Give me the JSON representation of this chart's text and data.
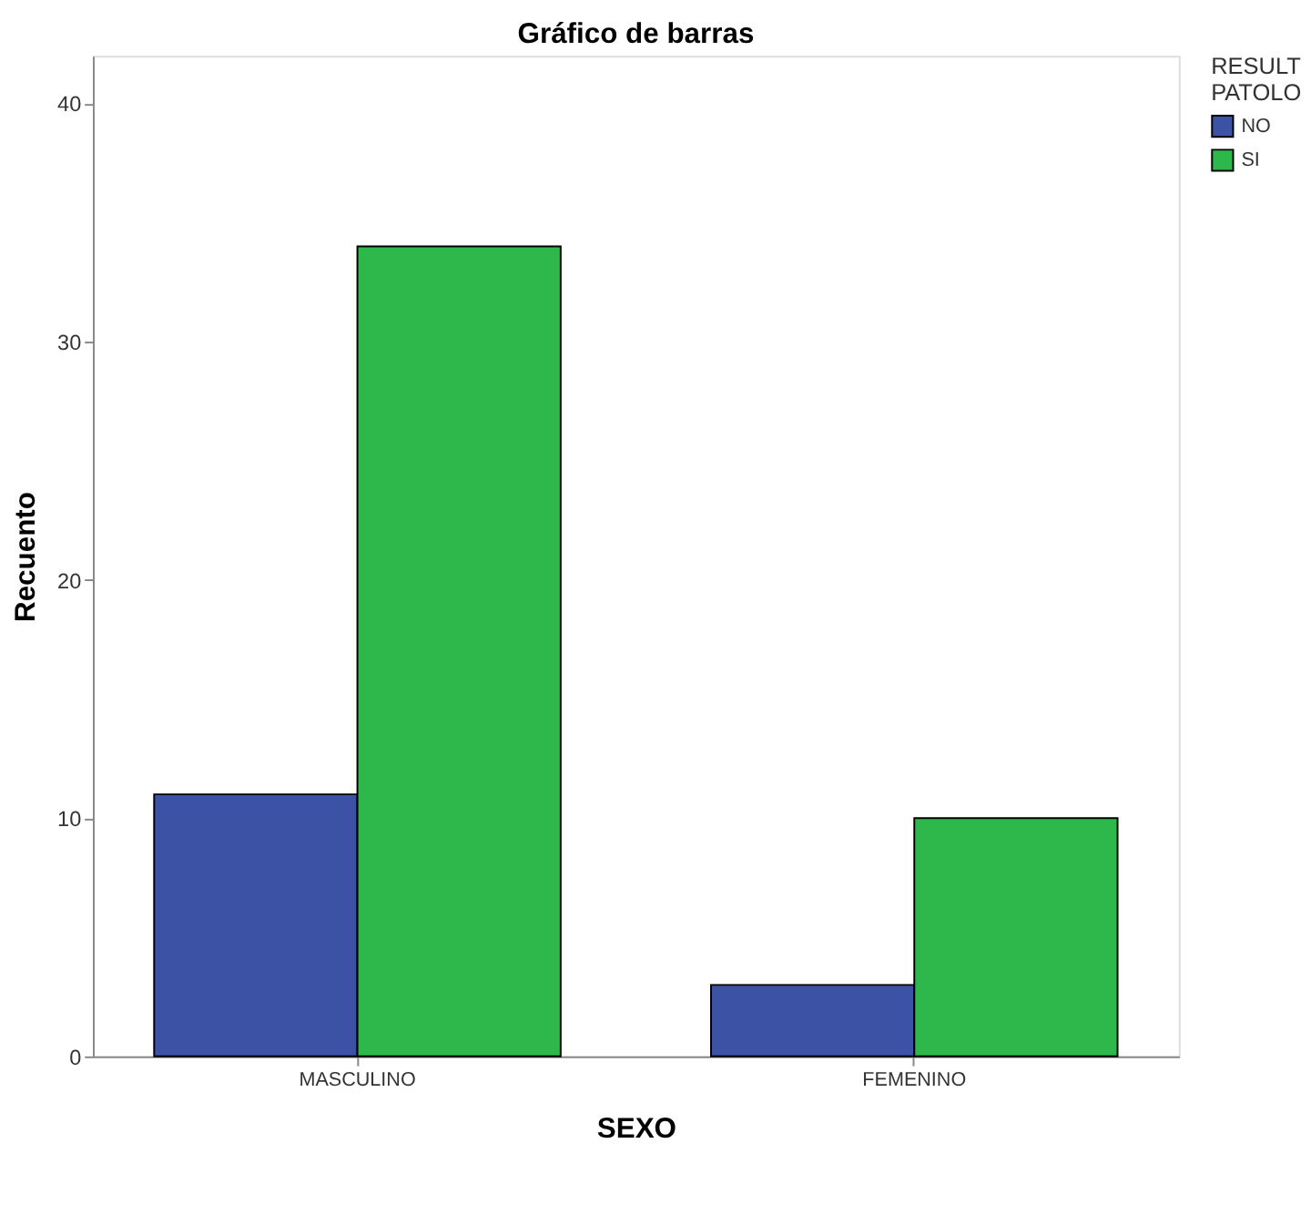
{
  "chart_data": {
    "type": "bar",
    "title": "Gráfico de barras",
    "xlabel": "SEXO",
    "ylabel": "Recuento",
    "legend_title": "RESULT PATOLO",
    "legend": "top right",
    "categories": [
      "MASCULINO",
      "FEMENINO"
    ],
    "series": [
      {
        "name": "NO",
        "color": "#3c53a5",
        "values": [
          11,
          3
        ]
      },
      {
        "name": "SI",
        "color": "#2eb84b",
        "values": [
          34,
          10
        ]
      }
    ],
    "ylim": [
      0,
      42
    ],
    "yticks": [
      0,
      10,
      20,
      30,
      40
    ],
    "grid": false
  }
}
